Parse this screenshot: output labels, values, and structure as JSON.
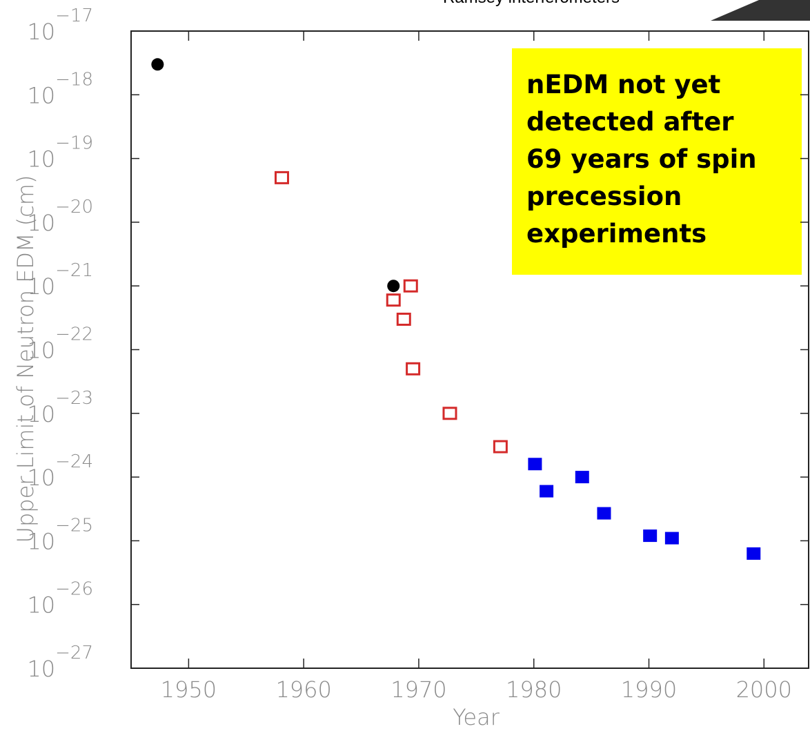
{
  "chart_data": {
    "type": "scatter",
    "subtitle": "Ramsey interferometers",
    "xlabel": "Year",
    "ylabel": "Upper Limit of Neutron EDM (cm)",
    "annotation": [
      "nEDM not yet",
      "detected after",
      "69 years of spin",
      "precession",
      "experiments"
    ],
    "annotation_color": "#ffff00",
    "log_y": true,
    "xlim": [
      1945,
      2004
    ],
    "xticks": [
      1950,
      1960,
      1970,
      1980,
      1990,
      2000
    ],
    "ylim": [
      1e-27,
      1e-17
    ],
    "yticks": [
      {
        "value": 1e-17,
        "label": "10−17"
      },
      {
        "value": 1e-18,
        "label": "10−18"
      },
      {
        "value": 1e-19,
        "label": "10−19"
      },
      {
        "value": 1e-20,
        "label": "10−20"
      },
      {
        "value": 1e-21,
        "label": "10−21"
      },
      {
        "value": 1e-22,
        "label": "10−22"
      },
      {
        "value": 1e-23,
        "label": "10−23"
      },
      {
        "value": 1e-24,
        "label": "10−24"
      },
      {
        "value": 1e-25,
        "label": "10−25"
      },
      {
        "value": 1e-26,
        "label": "10−26"
      },
      {
        "value": 1e-27,
        "label": "10−27"
      }
    ],
    "series": [
      {
        "marker": "circle",
        "color": "#000000",
        "x": [
          1947.3,
          1967.8
        ],
        "values": [
          3e-18,
          1e-21
        ]
      },
      {
        "marker": "open-square",
        "color": "#d42a2a",
        "x": [
          1958.1,
          1967.8,
          1969.3,
          1968.7,
          1969.5,
          1972.7,
          1977.1
        ],
        "values": [
          5e-20,
          6e-22,
          1e-21,
          3e-22,
          5e-23,
          1e-23,
          3e-24
        ]
      },
      {
        "marker": "filled-square",
        "color": "#0000ee",
        "x": [
          1980.1,
          1981.1,
          1984.2,
          1986.1,
          1990.1,
          1992.0,
          1999.1
        ],
        "values": [
          1.6e-24,
          6e-25,
          1e-24,
          2.7e-25,
          1.2e-25,
          1.1e-25,
          6.3e-26
        ]
      }
    ]
  }
}
